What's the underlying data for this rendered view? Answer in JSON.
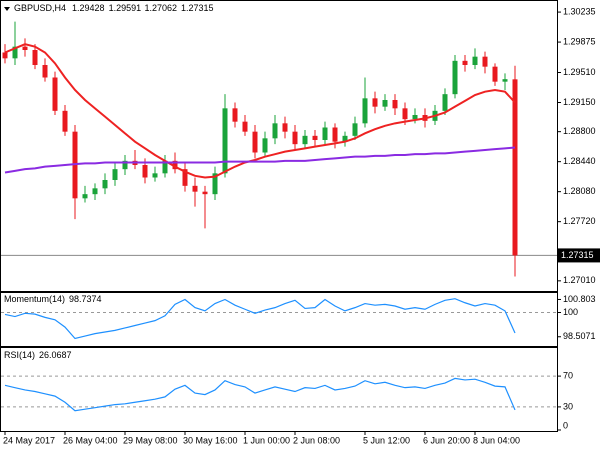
{
  "chart_data": [
    {
      "type": "candlestick",
      "title": "GBPUSD,H4",
      "quote": [
        1.29428,
        1.29591,
        1.27062,
        1.27315
      ],
      "categories": [
        "24 May 2017",
        null,
        null,
        null,
        null,
        null,
        "26 May 04:00",
        null,
        null,
        null,
        null,
        null,
        "29 May 08:00",
        null,
        null,
        null,
        null,
        null,
        "30 May 16:00",
        null,
        null,
        null,
        null,
        null,
        "1 Jun 00:00",
        null,
        null,
        null,
        null,
        "2 Jun 08:00",
        null,
        null,
        null,
        null,
        null,
        null,
        "5 Jun 12:00",
        null,
        null,
        null,
        null,
        null,
        "6 Jun 20:00",
        null,
        null,
        null,
        null,
        "8 Jun 04:00",
        null,
        null,
        null,
        null
      ],
      "open": [
        1.2975,
        1.2968,
        1.2982,
        1.2978,
        1.296,
        1.2945,
        1.2905,
        1.288,
        1.28,
        1.2805,
        1.2812,
        1.2822,
        1.2835,
        1.2845,
        1.284,
        1.2825,
        1.283,
        1.2845,
        1.2835,
        1.2815,
        1.2808,
        1.2805,
        1.283,
        1.2908,
        1.2892,
        1.288,
        1.2855,
        1.2872,
        1.289,
        1.288,
        1.2865,
        1.2875,
        1.287,
        1.2885,
        1.2868,
        1.2875,
        1.289,
        1.292,
        1.291,
        1.2918,
        1.2908,
        1.2895,
        1.29,
        1.2893,
        1.2905,
        1.2925,
        1.2965,
        1.296,
        1.297,
        1.2958,
        1.294,
        1.29428
      ],
      "high": [
        1.2985,
        1.3012,
        1.2992,
        1.2985,
        1.2968,
        1.2952,
        1.2912,
        1.2888,
        1.2815,
        1.2818,
        1.283,
        1.2842,
        1.2852,
        1.2858,
        1.2848,
        1.2838,
        1.2852,
        1.2855,
        1.2842,
        1.2825,
        1.2815,
        1.2838,
        1.2925,
        1.2915,
        1.29,
        1.2888,
        1.288,
        1.29,
        1.2898,
        1.2888,
        1.2882,
        1.2882,
        1.2892,
        1.289,
        1.288,
        1.2898,
        1.2945,
        1.2928,
        1.2925,
        1.2925,
        1.2915,
        1.2908,
        1.2908,
        1.2912,
        1.2932,
        1.2972,
        1.2972,
        1.298,
        1.2976,
        1.2962,
        1.295,
        1.29591
      ],
      "low": [
        1.2962,
        1.296,
        1.297,
        1.2955,
        1.294,
        1.29,
        1.2875,
        1.2775,
        1.2795,
        1.2798,
        1.2805,
        1.2815,
        1.2828,
        1.2835,
        1.2818,
        1.282,
        1.2825,
        1.283,
        1.2808,
        1.279,
        1.2764,
        1.2798,
        1.2825,
        1.2885,
        1.2875,
        1.2848,
        1.285,
        1.2865,
        1.2872,
        1.2858,
        1.286,
        1.2862,
        1.2865,
        1.286,
        1.2862,
        1.287,
        1.2885,
        1.2902,
        1.2905,
        1.29,
        1.2888,
        1.289,
        1.2885,
        1.2888,
        1.29,
        1.292,
        1.2952,
        1.2955,
        1.295,
        1.2935,
        1.293,
        1.27062
      ],
      "close": [
        1.2968,
        1.2982,
        1.2978,
        1.296,
        1.2945,
        1.2905,
        1.288,
        1.28,
        1.2805,
        1.2812,
        1.2822,
        1.2835,
        1.2845,
        1.284,
        1.2825,
        1.283,
        1.2845,
        1.2835,
        1.2815,
        1.2808,
        1.2805,
        1.283,
        1.2908,
        1.2892,
        1.288,
        1.2855,
        1.2872,
        1.289,
        1.288,
        1.2865,
        1.2875,
        1.287,
        1.2885,
        1.2868,
        1.2875,
        1.289,
        1.292,
        1.291,
        1.2918,
        1.2908,
        1.2895,
        1.29,
        1.2893,
        1.2905,
        1.2925,
        1.2965,
        1.296,
        1.297,
        1.2958,
        1.294,
        1.2943,
        1.27315
      ],
      "up_color": "#1aa33a",
      "down_color": "#e8191f",
      "series": [
        {
          "color": "#ee2222",
          "values": [
            1.2975,
            1.298,
            1.2985,
            1.2982,
            1.2975,
            1.2962,
            1.2945,
            1.293,
            1.2918,
            1.2908,
            1.2898,
            1.2888,
            1.2878,
            1.2868,
            1.286,
            1.2852,
            1.2845,
            1.2838,
            1.2832,
            1.2827,
            1.2825,
            1.2826,
            1.2832,
            1.2838,
            1.2843,
            1.2846,
            1.285,
            1.2853,
            1.2856,
            1.2858,
            1.286,
            1.2862,
            1.2864,
            1.2866,
            1.2868,
            1.2872,
            1.2878,
            1.2883,
            1.2887,
            1.289,
            1.2892,
            1.2894,
            1.2896,
            1.2899,
            1.2903,
            1.291,
            1.2917,
            1.2924,
            1.2928,
            1.293,
            1.2928,
            1.2915
          ]
        },
        {
          "color": "#8a2be2",
          "values": [
            1.2831,
            1.2833,
            1.2835,
            1.2836,
            1.2838,
            1.2839,
            1.284,
            1.2841,
            1.2842,
            1.2842,
            1.2843,
            1.2843,
            1.2843,
            1.2843,
            1.2843,
            1.2843,
            1.2843,
            1.2843,
            1.2843,
            1.2843,
            1.2843,
            1.2843,
            1.2844,
            1.2844,
            1.2844,
            1.2844,
            1.2844,
            1.2844,
            1.2845,
            1.2845,
            1.2845,
            1.2846,
            1.2847,
            1.2848,
            1.2849,
            1.285,
            1.285,
            1.2851,
            1.2851,
            1.2852,
            1.2852,
            1.2853,
            1.2853,
            1.2854,
            1.2854,
            1.2855,
            1.2856,
            1.2857,
            1.2858,
            1.2859,
            1.286,
            1.2861
          ]
        }
      ],
      "last_price": 1.27315,
      "ylim": [
        1.269,
        1.3038
      ],
      "yticks": [
        1.30235,
        {
          "value": 1.29875,
          "label": "1.29875"
        },
        {
          "value": 1.2951,
          "label": "1.29510"
        },
        {
          "value": 1.2915,
          "label": "1.29150"
        },
        {
          "value": 1.288,
          "label": "1.28800"
        },
        {
          "value": 1.2844,
          "label": "1.28440"
        },
        {
          "value": 1.2808,
          "label": "1.28080"
        },
        {
          "value": 1.2772,
          "label": "1.27720"
        },
        {
          "value": 1.2701,
          "label": "1.27010"
        }
      ]
    },
    {
      "type": "line",
      "title": "Momentum(14)",
      "last": 98.7374,
      "series": [
        {
          "color": "#1e90ff",
          "values": [
            99.88,
            99.75,
            99.95,
            99.9,
            99.7,
            99.55,
            99.1,
            98.4,
            98.55,
            98.7,
            98.8,
            98.9,
            99.05,
            99.2,
            99.35,
            99.5,
            99.8,
            100.5,
            100.8,
            100.3,
            100.1,
            100.55,
            100.8,
            100.45,
            100.2,
            99.95,
            100.15,
            100.3,
            100.55,
            100.75,
            100.25,
            100.3,
            100.8,
            100.4,
            100.1,
            100.3,
            100.55,
            100.45,
            100.5,
            100.4,
            100.2,
            100.3,
            100.2,
            100.5,
            100.75,
            100.85,
            100.6,
            100.4,
            100.55,
            100.45,
            100.1,
            98.7374
          ]
        }
      ],
      "levels": [
        100
      ],
      "ylim": [
        98.0,
        101.2
      ],
      "yticks": [
        100.803,
        100,
        98.5071
      ]
    },
    {
      "type": "line",
      "title": "RSI(14)",
      "last": 26.0687,
      "series": [
        {
          "color": "#1e90ff",
          "values": [
            58,
            55,
            52,
            50,
            47,
            44,
            36,
            25,
            27,
            29,
            31,
            33,
            34,
            36,
            38,
            40,
            43,
            53,
            58,
            48,
            46,
            52,
            64,
            59,
            56,
            48,
            52,
            56,
            53,
            50,
            55,
            54,
            58,
            52,
            54,
            57,
            64,
            60,
            62,
            58,
            55,
            56,
            54,
            58,
            61,
            67,
            65,
            66,
            62,
            57,
            56,
            26.0687
          ]
        }
      ],
      "levels": [
        70,
        30
      ],
      "ylim": [
        0,
        100
      ],
      "yticks": [
        70,
        30,
        0
      ]
    }
  ]
}
